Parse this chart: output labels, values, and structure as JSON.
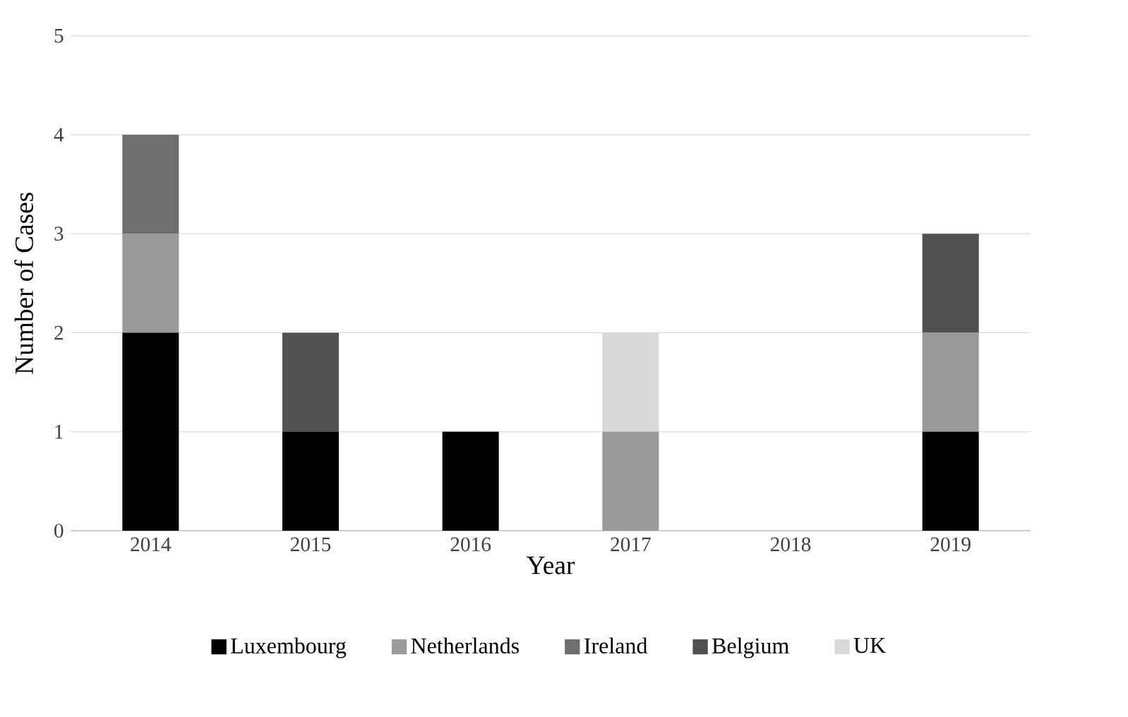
{
  "chart_data": {
    "type": "bar",
    "stacked": true,
    "xlabel": "Year",
    "ylabel": "Number of Cases",
    "categories": [
      "2014",
      "2015",
      "2016",
      "2017",
      "2018",
      "2019"
    ],
    "series": [
      {
        "name": "Luxembourg",
        "color": "#000000",
        "values": [
          2,
          1,
          1,
          0,
          0,
          1
        ]
      },
      {
        "name": "Netherlands",
        "color": "#9a9a9a",
        "values": [
          1,
          0,
          0,
          1,
          0,
          1
        ]
      },
      {
        "name": "Ireland",
        "color": "#6e6e6e",
        "values": [
          1,
          0,
          0,
          0,
          0,
          0
        ]
      },
      {
        "name": "Belgium",
        "color": "#505050",
        "values": [
          0,
          1,
          0,
          0,
          0,
          1
        ]
      },
      {
        "name": "UK",
        "color": "#d9d9d9",
        "values": [
          0,
          0,
          0,
          1,
          0,
          0
        ]
      }
    ],
    "ylim": [
      0,
      5
    ],
    "yticks": [
      0,
      1,
      2,
      3,
      4,
      5
    ],
    "grid": "y",
    "legend": "bottom"
  }
}
